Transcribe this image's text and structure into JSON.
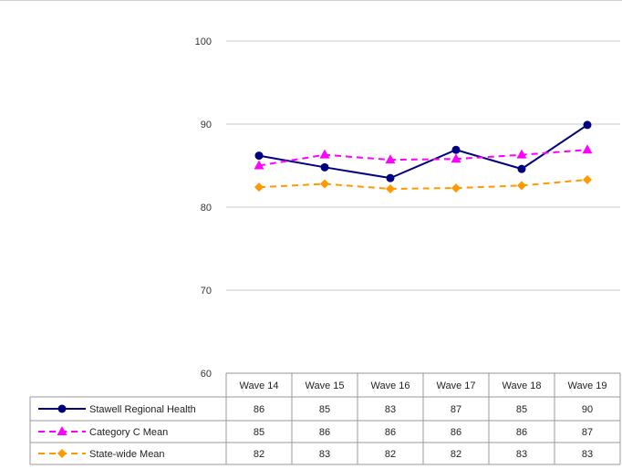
{
  "chart_data": {
    "type": "line",
    "title": "",
    "xlabel": "",
    "ylabel": "",
    "ylim": [
      60,
      100
    ],
    "yticks": [
      60,
      70,
      80,
      90,
      100
    ],
    "grid": true,
    "categories": [
      "Wave 14",
      "Wave 15",
      "Wave 16",
      "Wave 17",
      "Wave 18",
      "Wave 19"
    ],
    "series": [
      {
        "name": "Stawell Regional Health",
        "values": [
          86.2,
          84.8,
          83.5,
          86.9,
          84.6,
          89.9
        ],
        "table_values": [
          "86",
          "85",
          "83",
          "87",
          "85",
          "90"
        ],
        "color": "#000080",
        "line_style": "solid",
        "marker": "circle"
      },
      {
        "name": "Category C Mean",
        "values": [
          85.0,
          86.3,
          85.7,
          85.8,
          86.3,
          86.9
        ],
        "table_values": [
          "85",
          "86",
          "86",
          "86",
          "86",
          "87"
        ],
        "color": "#ff00ff",
        "line_style": "dashed",
        "marker": "triangle"
      },
      {
        "name": "State-wide Mean",
        "values": [
          82.4,
          82.8,
          82.2,
          82.3,
          82.6,
          83.3
        ],
        "table_values": [
          "82",
          "83",
          "82",
          "82",
          "83",
          "83"
        ],
        "color": "#ff9900",
        "line_style": "dashed",
        "marker": "diamond"
      }
    ]
  }
}
